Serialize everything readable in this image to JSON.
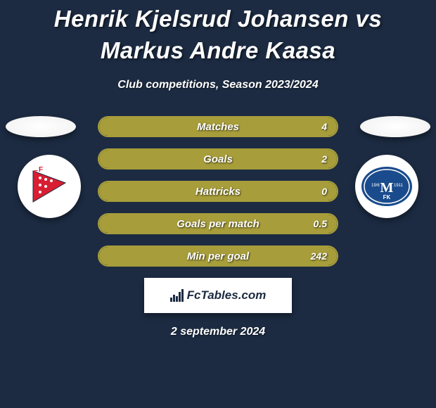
{
  "title": "Henrik Kjelsrud Johansen vs Markus Andre Kaasa",
  "subtitle": "Club competitions, Season 2023/2024",
  "date": "2 september 2024",
  "logo_text": "FcTables.com",
  "colors": {
    "background": "#1c2b42",
    "bar_border": "#a79d3a",
    "bar_fill": "#a79d3a",
    "text": "#ffffff"
  },
  "left_club": {
    "primary": "#d81e32",
    "secondary": "#ffffff"
  },
  "right_club": {
    "primary": "#1a4b8c",
    "secondary": "#ffffff"
  },
  "stats": [
    {
      "label": "Matches",
      "value_right": "4",
      "fill_pct": 100
    },
    {
      "label": "Goals",
      "value_right": "2",
      "fill_pct": 100
    },
    {
      "label": "Hattricks",
      "value_right": "0",
      "fill_pct": 100
    },
    {
      "label": "Goals per match",
      "value_right": "0.5",
      "fill_pct": 100
    },
    {
      "label": "Min per goal",
      "value_right": "242",
      "fill_pct": 100
    }
  ]
}
